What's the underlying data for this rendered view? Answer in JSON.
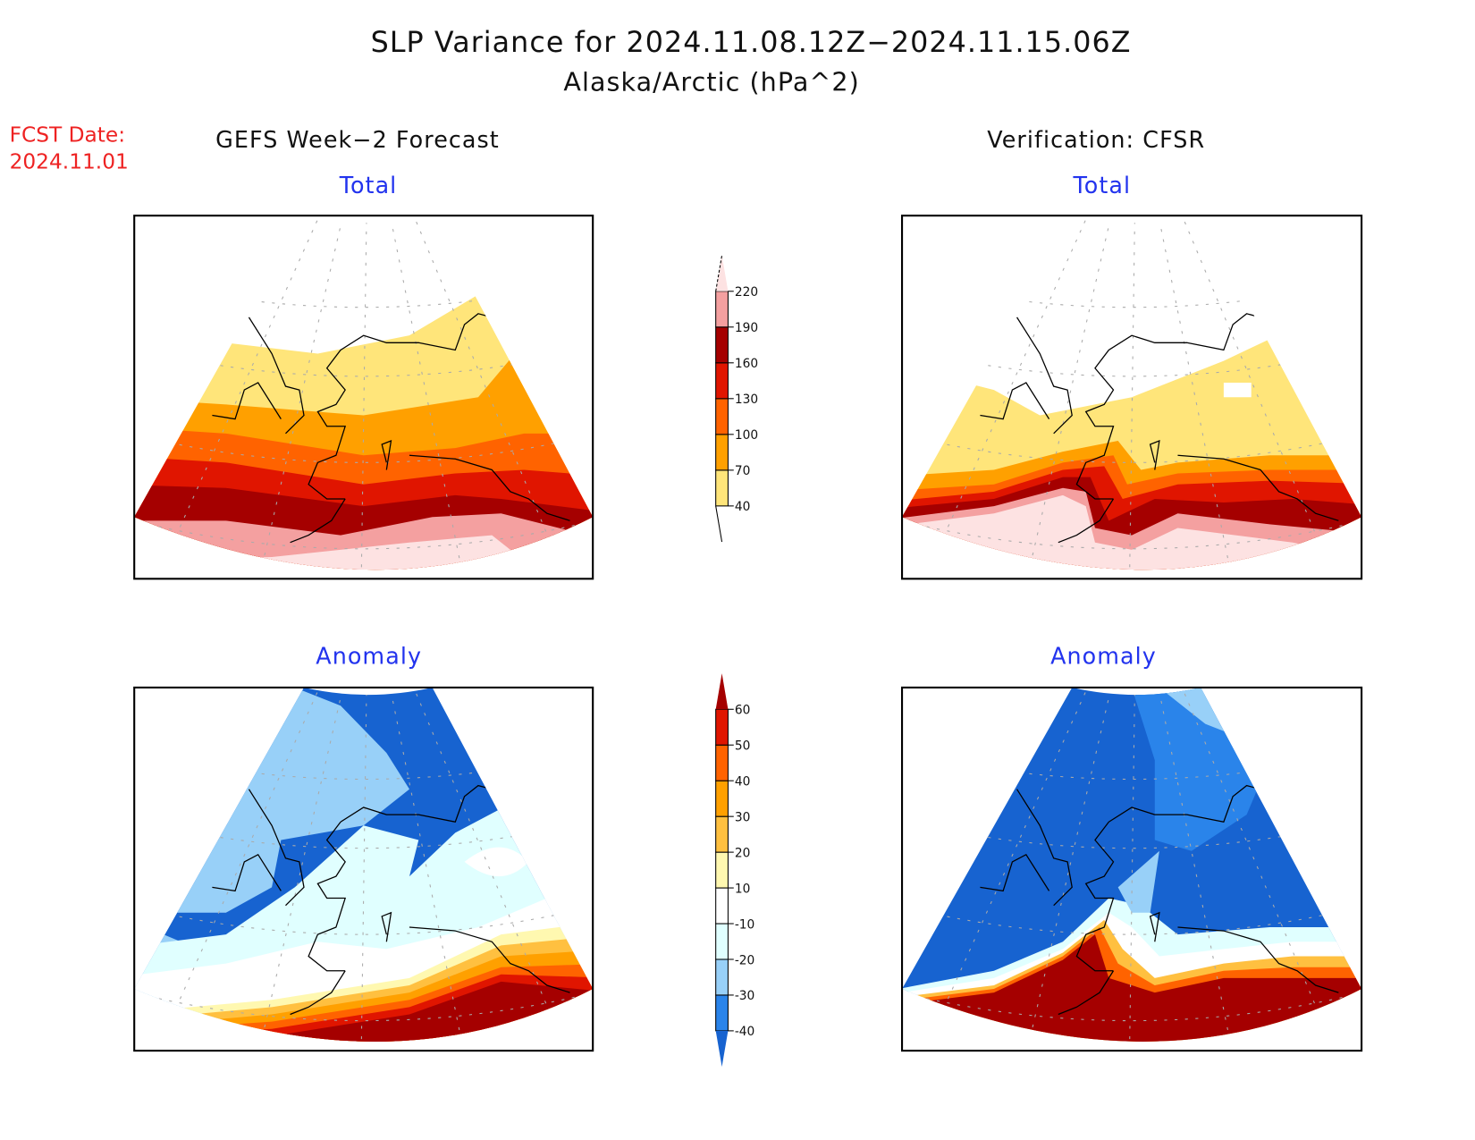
{
  "header": {
    "title": "SLP Variance for 2024.11.08.12Z−2024.11.15.06Z",
    "subtitle": "Alaska/Arctic (hPa^2)",
    "fcst_label": "FCST Date:",
    "fcst_date": "2024.11.01",
    "left_column": "GEFS Week−2 Forecast",
    "right_column": "Verification: CFSR"
  },
  "colors": {
    "title_text": "#111111",
    "panel_title": "#2233ee",
    "fcst_text": "#ee2222"
  },
  "chart_data": [
    {
      "type": "heatmap",
      "title": "Total",
      "column": "GEFS Week-2 Forecast",
      "region": "Alaska/Arctic",
      "units": "hPa^2",
      "description": "Filled contours of SLP variance; increasing from ~<40 over Arctic Ocean to >220 over North Pacific/Gulf of Alaska in zonal bands",
      "colorbar": "total"
    },
    {
      "type": "heatmap",
      "title": "Total",
      "column": "Verification: CFSR",
      "region": "Alaska/Arctic",
      "units": "hPa^2",
      "description": "Filled contours; <40 over Arctic/northern Alaska, 40-70 over most of mainland, strong gradient to >220 over Bering Sea/North Pacific with a 160-190 ridge tongue along Alaska Peninsula",
      "colorbar": "total"
    },
    {
      "type": "heatmap",
      "title": "Anomaly",
      "column": "GEFS Week-2 Forecast",
      "region": "Alaska/Arctic",
      "units": "hPa^2",
      "description": "Negative anomalies (-10 to -40) over Arctic and Chukotka, near-zero over southern Alaska, positive (>60) over North Pacific",
      "colorbar": "anomaly"
    },
    {
      "type": "heatmap",
      "title": "Anomaly",
      "column": "Verification: CFSR",
      "region": "Alaska/Arctic",
      "units": "hPa^2",
      "description": "Strong negative anomalies (< -40) over Arctic and mainland Alaska, sharp transition to strong positive (>60) over Bering Sea and North Pacific",
      "colorbar": "anomaly"
    }
  ],
  "colorbars": {
    "total": {
      "ticks": [
        "40",
        "70",
        "100",
        "130",
        "160",
        "190",
        "220"
      ],
      "colors": [
        "#ffe57a",
        "#ffa000",
        "#ff6300",
        "#e01500",
        "#a50000",
        "#f4a0a0",
        "#fde2e2"
      ],
      "below_color": "#ffffff",
      "above_color": "#fde2e2"
    },
    "anomaly": {
      "ticks": [
        "-40",
        "-30",
        "-20",
        "-10",
        "10",
        "20",
        "30",
        "40",
        "50",
        "60"
      ],
      "colors": [
        "#1763d0",
        "#2a84ea",
        "#98d0f8",
        "#e0ffff",
        "#ffffff",
        "#fff8b0",
        "#ffc040",
        "#ffa000",
        "#ff6300",
        "#e01500",
        "#a50000"
      ]
    }
  }
}
